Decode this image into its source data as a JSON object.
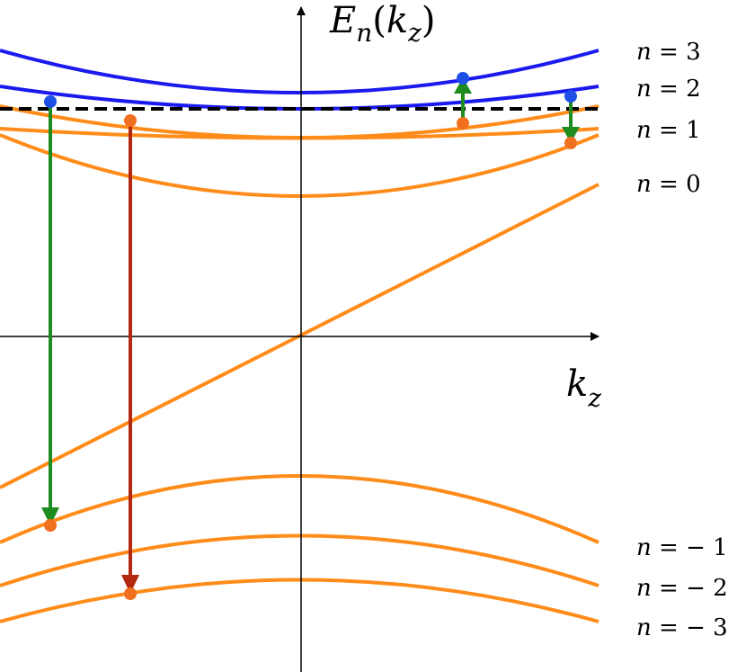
{
  "axes": {
    "y_label_main": "E",
    "y_label_sub": "n",
    "y_label_arg_open": "(",
    "y_label_arg_main": "k",
    "y_label_arg_sub": "z",
    "y_label_arg_close": ")",
    "x_label_main": "k",
    "x_label_sub": "z"
  },
  "band_labels": [
    {
      "var": "n",
      "eq": " = ",
      "val": "3"
    },
    {
      "var": "n",
      "eq": " = ",
      "val": "2"
    },
    {
      "var": "n",
      "eq": " = ",
      "val": "1"
    },
    {
      "var": "n",
      "eq": " = ",
      "val": "0"
    },
    {
      "var": "n",
      "eq": " = − ",
      "val": "1"
    },
    {
      "var": "n",
      "eq": " = − ",
      "val": "2"
    },
    {
      "var": "n",
      "eq": " = − ",
      "val": "3"
    }
  ],
  "colors": {
    "upper_bands": "#1a1aee",
    "lower_bands": "#ff8c1a",
    "orange_dot": "#f07020",
    "blue_dot": "#1e50e6",
    "green_arrow": "#1e8c1e",
    "red_arrow": "#b4280f",
    "fermi_line": "#000000",
    "axes": "#000000"
  }
}
